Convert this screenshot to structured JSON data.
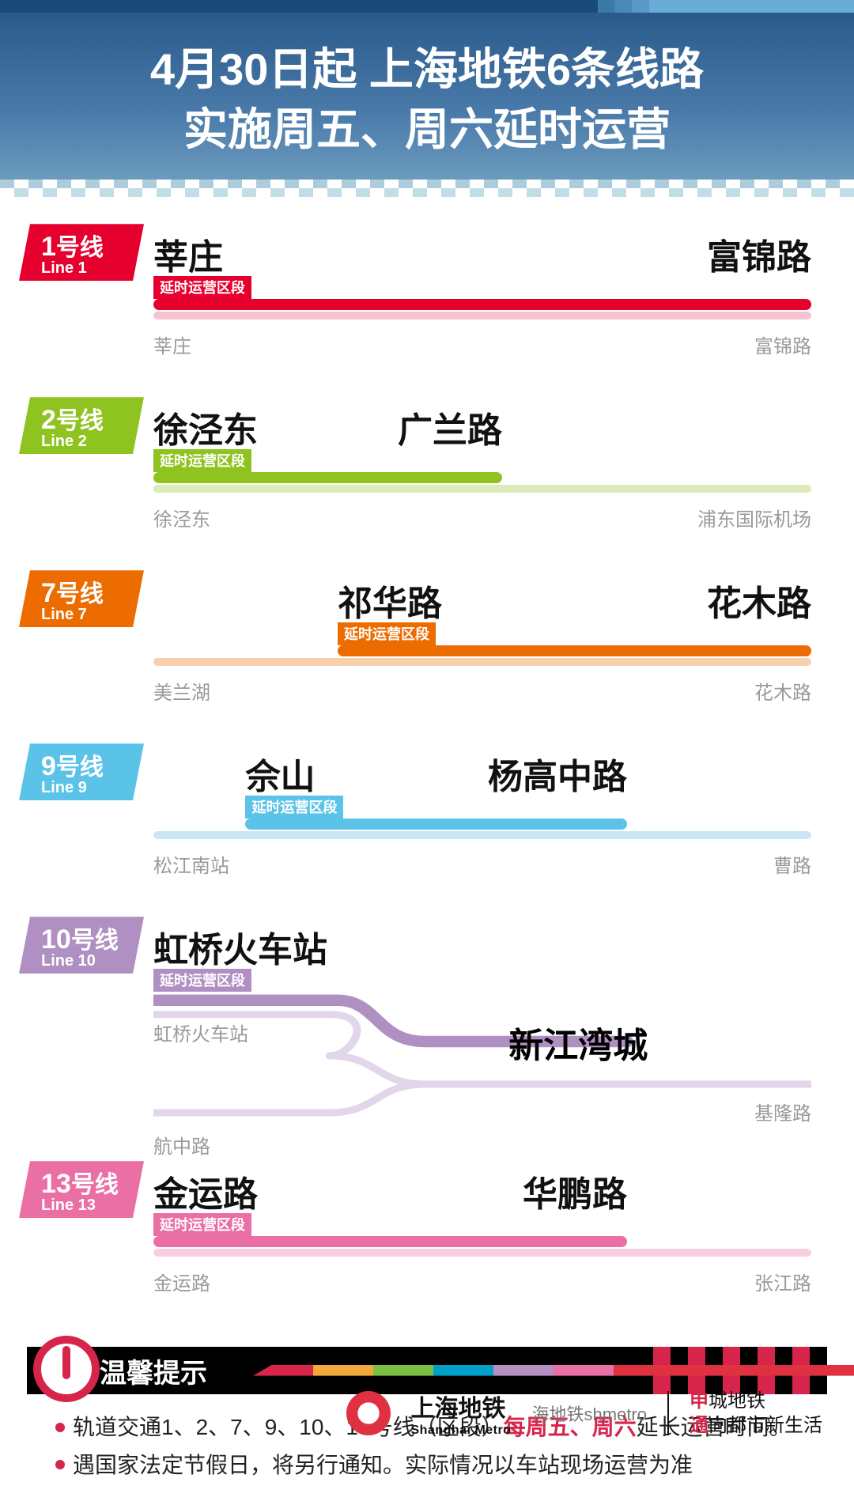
{
  "header": {
    "line1": "4月30日起  上海地铁6条线路",
    "line2": "实施周五、周六延时运营"
  },
  "segment_label": "延时运营区段",
  "lines": [
    {
      "id": "1",
      "name_cn": "号线",
      "name_en": "Line 1",
      "color": "#e6002d",
      "light": "#f6c4cf",
      "ext_start_pct": 0,
      "ext_end_pct": 100,
      "top_stations": [
        {
          "label": "莘庄",
          "pos": 0,
          "align": "left"
        },
        {
          "label": "富锦路",
          "pos": 100,
          "align": "right"
        }
      ],
      "bot_stations": [
        {
          "label": "莘庄",
          "pos": 0,
          "align": "left"
        },
        {
          "label": "富锦路",
          "pos": 100,
          "align": "right"
        }
      ]
    },
    {
      "id": "2",
      "name_cn": "号线",
      "name_en": "Line 2",
      "color": "#8fc31f",
      "light": "#dcebb9",
      "ext_start_pct": 0,
      "ext_end_pct": 53,
      "top_stations": [
        {
          "label": "徐泾东",
          "pos": 0,
          "align": "left"
        },
        {
          "label": "广兰路",
          "pos": 53,
          "align": "right"
        }
      ],
      "bot_stations": [
        {
          "label": "徐泾东",
          "pos": 0,
          "align": "left"
        },
        {
          "label": "浦东国际机场",
          "pos": 100,
          "align": "right"
        }
      ]
    },
    {
      "id": "7",
      "name_cn": "号线",
      "name_en": "Line 7",
      "color": "#ed6c00",
      "light": "#f7d0ad",
      "ext_start_pct": 28,
      "ext_end_pct": 100,
      "top_stations": [
        {
          "label": "祁华路",
          "pos": 28,
          "align": "left"
        },
        {
          "label": "花木路",
          "pos": 100,
          "align": "right"
        }
      ],
      "bot_stations": [
        {
          "label": "美兰湖",
          "pos": 0,
          "align": "left"
        },
        {
          "label": "花木路",
          "pos": 100,
          "align": "right"
        }
      ]
    },
    {
      "id": "9",
      "name_cn": "号线",
      "name_en": "Line 9",
      "color": "#5cc3e8",
      "light": "#c8e8f5",
      "ext_start_pct": 14,
      "ext_end_pct": 72,
      "top_stations": [
        {
          "label": "佘山",
          "pos": 14,
          "align": "left"
        },
        {
          "label": "杨高中路",
          "pos": 72,
          "align": "right"
        }
      ],
      "bot_stations": [
        {
          "label": "松江南站",
          "pos": 0,
          "align": "left"
        },
        {
          "label": "曹路",
          "pos": 100,
          "align": "right"
        }
      ]
    },
    {
      "id": "10",
      "name_cn": "号线",
      "name_en": "Line 10",
      "color": "#b08fc2",
      "light": "#e2d6ea",
      "branch": true,
      "top_stations": [
        {
          "label": "虹桥火车站",
          "pos": 0,
          "align": "left"
        }
      ],
      "branch_data": {
        "ext_start_pct": 0,
        "ext_split_pct": 34,
        "ext_end_pct": 72,
        "label_top_left": "虹桥火车站",
        "label_main_end": "新江湾城",
        "label_branch_right": "基隆路",
        "label_branch_left": "航中路"
      }
    },
    {
      "id": "13",
      "name_cn": "号线",
      "name_en": "Line 13",
      "color": "#ea6fa4",
      "light": "#f7cfe1",
      "ext_start_pct": 0,
      "ext_end_pct": 72,
      "top_stations": [
        {
          "label": "金运路",
          "pos": 0,
          "align": "left"
        },
        {
          "label": "华鹏路",
          "pos": 72,
          "align": "right"
        }
      ],
      "bot_stations": [
        {
          "label": "金运路",
          "pos": 0,
          "align": "left"
        },
        {
          "label": "张江路",
          "pos": 100,
          "align": "right"
        }
      ]
    }
  ],
  "notice": {
    "title": "温馨提示",
    "rows": [
      {
        "pre": "轨道交通1、2、7、9、10、13号线（区段）",
        "hl": "每周五、周六",
        "post": "延长运营时间。"
      },
      {
        "pre": "遇国家法定节假日，将另行通知。实际情况以车站现场运营为准",
        "hl": "",
        "post": ""
      }
    ]
  },
  "footer": {
    "brand_cn": "上海地铁",
    "brand_en": "Shanghai Metro",
    "watermark": "海地铁shmetro",
    "slogan1_pre": "申",
    "slogan1": "城地铁",
    "slogan2_pre": "通",
    "slogan2": "向都市新生活"
  }
}
